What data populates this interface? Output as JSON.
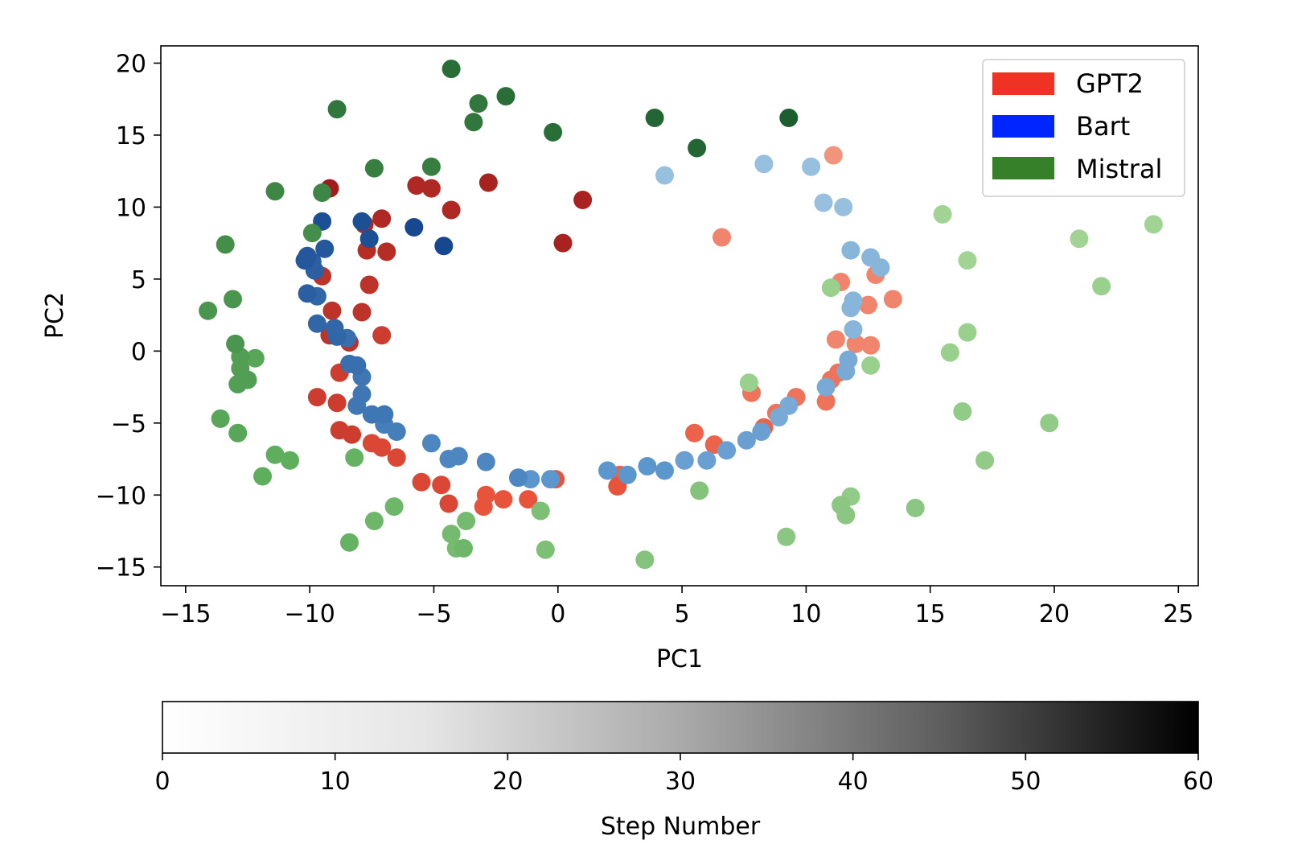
{
  "chart_data": {
    "type": "scatter",
    "title": "",
    "xlabel": "PC1",
    "ylabel": "PC2",
    "xlim": [
      -16,
      25.8
    ],
    "ylim": [
      -16.3,
      21.2
    ],
    "xticks": [
      -15,
      -10,
      -5,
      0,
      5,
      10,
      15,
      20,
      25
    ],
    "xtick_labels": [
      "−15",
      "−10",
      "−5",
      "0",
      "5",
      "10",
      "15",
      "20",
      "25"
    ],
    "yticks": [
      -15,
      -10,
      -5,
      0,
      5,
      10,
      15,
      20
    ],
    "ytick_labels": [
      "−15",
      "−10",
      "−5",
      "0",
      "5",
      "10",
      "15",
      "20"
    ],
    "grid": false,
    "legend_position": "top-right",
    "legend": [
      {
        "name": "GPT2",
        "color": "#ee3324"
      },
      {
        "name": "Bart",
        "color": "#0026ff"
      },
      {
        "name": "Mistral",
        "color": "#37802a"
      }
    ],
    "colorbar": {
      "label": "Step Number",
      "range": [
        0,
        60
      ],
      "ticks": [
        0,
        10,
        20,
        30,
        40,
        50,
        60
      ],
      "tick_labels": [
        "0",
        "10",
        "20",
        "30",
        "40",
        "50",
        "60"
      ],
      "orientation": "horizontal",
      "colormap": "greys"
    },
    "series": [
      {
        "name": "GPT2",
        "points": [
          [
            11.1,
            13.6,
            0.1
          ],
          [
            6.6,
            7.9,
            0.2
          ],
          [
            12.8,
            5.3,
            0.2
          ],
          [
            13.5,
            3.6,
            0.2
          ],
          [
            11.4,
            4.8,
            0.2
          ],
          [
            12.5,
            3.2,
            0.2
          ],
          [
            11.2,
            0.8,
            0.2
          ],
          [
            12.0,
            0.5,
            0.2
          ],
          [
            12.6,
            0.4,
            0.2
          ],
          [
            11.3,
            -1.5,
            0.3
          ],
          [
            11.0,
            -2.0,
            0.3
          ],
          [
            9.6,
            -3.2,
            0.3
          ],
          [
            10.8,
            -3.5,
            0.3
          ],
          [
            7.8,
            -2.9,
            0.3
          ],
          [
            8.8,
            -4.3,
            0.3
          ],
          [
            8.3,
            -5.3,
            0.4
          ],
          [
            5.5,
            -5.7,
            0.4
          ],
          [
            6.3,
            -6.5,
            0.4
          ],
          [
            5.1,
            -7.6,
            0.4
          ],
          [
            2.5,
            -8.6,
            0.4
          ],
          [
            2.4,
            -9.4,
            0.5
          ],
          [
            -0.1,
            -8.9,
            0.5
          ],
          [
            -1.2,
            -10.3,
            0.5
          ],
          [
            -2.2,
            -10.3,
            0.5
          ],
          [
            -2.9,
            -10.0,
            0.5
          ],
          [
            -3.0,
            -10.8,
            0.5
          ],
          [
            -4.4,
            -10.6,
            0.6
          ],
          [
            -4.7,
            -9.3,
            0.6
          ],
          [
            -5.5,
            -9.1,
            0.6
          ],
          [
            -6.5,
            -7.4,
            0.6
          ],
          [
            -7.1,
            -6.7,
            0.6
          ],
          [
            -7.5,
            -6.4,
            0.6
          ],
          [
            -8.3,
            -5.8,
            0.7
          ],
          [
            -8.8,
            -5.5,
            0.7
          ],
          [
            -8.9,
            -3.6,
            0.7
          ],
          [
            -9.7,
            -3.2,
            0.7
          ],
          [
            -8.8,
            -1.5,
            0.7
          ],
          [
            -7.1,
            1.1,
            0.7
          ],
          [
            -8.4,
            0.6,
            0.8
          ],
          [
            -9.2,
            1.1,
            0.8
          ],
          [
            -7.9,
            2.7,
            0.8
          ],
          [
            -9.1,
            2.8,
            0.8
          ],
          [
            -9.5,
            5.2,
            0.8
          ],
          [
            -7.6,
            4.6,
            0.8
          ],
          [
            -7.7,
            7.0,
            0.85
          ],
          [
            -6.9,
            6.9,
            0.85
          ],
          [
            -7.8,
            8.8,
            0.9
          ],
          [
            -7.1,
            9.2,
            0.9
          ],
          [
            -4.3,
            9.8,
            0.9
          ],
          [
            -5.7,
            11.5,
            0.9
          ],
          [
            -5.1,
            11.3,
            0.9
          ],
          [
            -2.8,
            11.7,
            0.95
          ],
          [
            1.0,
            10.5,
            0.95
          ],
          [
            0.2,
            7.5,
            0.95
          ],
          [
            -9.2,
            11.3,
            1.0
          ]
        ]
      },
      {
        "name": "Bart",
        "points": [
          [
            4.3,
            12.2,
            0.1
          ],
          [
            8.3,
            13.0,
            0.1
          ],
          [
            10.2,
            12.8,
            0.1
          ],
          [
            10.7,
            10.3,
            0.1
          ],
          [
            11.5,
            10.0,
            0.1
          ],
          [
            11.8,
            7.0,
            0.2
          ],
          [
            12.6,
            6.5,
            0.2
          ],
          [
            13.0,
            5.8,
            0.2
          ],
          [
            11.9,
            3.5,
            0.2
          ],
          [
            11.8,
            3.0,
            0.2
          ],
          [
            11.9,
            1.5,
            0.2
          ],
          [
            11.7,
            -0.6,
            0.3
          ],
          [
            11.6,
            -1.4,
            0.3
          ],
          [
            10.8,
            -2.5,
            0.3
          ],
          [
            9.3,
            -3.8,
            0.3
          ],
          [
            8.9,
            -4.6,
            0.3
          ],
          [
            8.2,
            -5.6,
            0.4
          ],
          [
            7.6,
            -6.2,
            0.4
          ],
          [
            6.8,
            -6.9,
            0.4
          ],
          [
            6.0,
            -7.6,
            0.4
          ],
          [
            5.1,
            -7.6,
            0.4
          ],
          [
            4.3,
            -8.3,
            0.5
          ],
          [
            3.6,
            -8.0,
            0.5
          ],
          [
            2.8,
            -8.6,
            0.5
          ],
          [
            2.0,
            -8.3,
            0.5
          ],
          [
            -0.3,
            -8.9,
            0.5
          ],
          [
            -1.1,
            -8.9,
            0.5
          ],
          [
            -1.6,
            -8.8,
            0.6
          ],
          [
            -2.9,
            -7.7,
            0.6
          ],
          [
            -4.0,
            -7.3,
            0.6
          ],
          [
            -4.4,
            -7.5,
            0.6
          ],
          [
            -5.1,
            -6.4,
            0.6
          ],
          [
            -6.5,
            -5.6,
            0.65
          ],
          [
            -7.0,
            -5.1,
            0.65
          ],
          [
            -7.0,
            -4.4,
            0.7
          ],
          [
            -7.5,
            -4.4,
            0.7
          ],
          [
            -8.1,
            -3.8,
            0.7
          ],
          [
            -7.9,
            -3.0,
            0.7
          ],
          [
            -7.9,
            -1.8,
            0.7
          ],
          [
            -8.1,
            -1.0,
            0.75
          ],
          [
            -8.4,
            -0.9,
            0.75
          ],
          [
            -8.5,
            0.9,
            0.75
          ],
          [
            -8.9,
            1.0,
            0.8
          ],
          [
            -9.0,
            1.6,
            0.8
          ],
          [
            -9.7,
            1.9,
            0.8
          ],
          [
            -9.7,
            3.8,
            0.8
          ],
          [
            -10.1,
            4.0,
            0.85
          ],
          [
            -9.8,
            5.6,
            0.85
          ],
          [
            -9.9,
            6.2,
            0.85
          ],
          [
            -10.2,
            6.3,
            0.9
          ],
          [
            -10.1,
            6.6,
            0.9
          ],
          [
            -9.4,
            7.1,
            0.9
          ],
          [
            -9.5,
            9.0,
            0.95
          ],
          [
            -7.9,
            9.0,
            0.95
          ],
          [
            -7.6,
            7.8,
            0.95
          ],
          [
            -5.8,
            8.6,
            1.0
          ],
          [
            -4.6,
            7.3,
            1.0
          ]
        ]
      },
      {
        "name": "Mistral",
        "points": [
          [
            24.0,
            8.8,
            0.05
          ],
          [
            21.0,
            7.8,
            0.05
          ],
          [
            15.5,
            9.5,
            0.05
          ],
          [
            16.5,
            6.3,
            0.05
          ],
          [
            21.9,
            4.5,
            0.1
          ],
          [
            11.0,
            4.4,
            0.1
          ],
          [
            16.5,
            1.3,
            0.1
          ],
          [
            15.8,
            -0.1,
            0.1
          ],
          [
            12.6,
            -1.0,
            0.1
          ],
          [
            7.7,
            -2.2,
            0.1
          ],
          [
            16.3,
            -4.2,
            0.15
          ],
          [
            19.8,
            -5.0,
            0.15
          ],
          [
            17.2,
            -7.6,
            0.15
          ],
          [
            11.8,
            -10.1,
            0.15
          ],
          [
            11.4,
            -10.7,
            0.2
          ],
          [
            11.6,
            -11.4,
            0.2
          ],
          [
            14.4,
            -10.9,
            0.2
          ],
          [
            9.2,
            -12.9,
            0.2
          ],
          [
            5.7,
            -9.7,
            0.25
          ],
          [
            3.5,
            -14.5,
            0.25
          ],
          [
            -0.7,
            -11.1,
            0.3
          ],
          [
            -0.5,
            -13.8,
            0.3
          ],
          [
            -3.7,
            -11.8,
            0.35
          ],
          [
            -4.3,
            -12.7,
            0.35
          ],
          [
            -4.1,
            -13.7,
            0.35
          ],
          [
            -3.8,
            -13.7,
            0.4
          ],
          [
            -6.6,
            -10.8,
            0.4
          ],
          [
            -7.4,
            -11.8,
            0.4
          ],
          [
            -8.4,
            -13.3,
            0.45
          ],
          [
            -8.2,
            -7.4,
            0.45
          ],
          [
            -10.8,
            -7.6,
            0.5
          ],
          [
            -11.4,
            -7.2,
            0.5
          ],
          [
            -11.9,
            -8.7,
            0.5
          ],
          [
            -12.9,
            -5.7,
            0.55
          ],
          [
            -13.6,
            -4.7,
            0.55
          ],
          [
            -12.2,
            -0.5,
            0.55
          ],
          [
            -12.5,
            -2.0,
            0.6
          ],
          [
            -12.9,
            -2.3,
            0.6
          ],
          [
            -12.8,
            -0.4,
            0.6
          ],
          [
            -12.8,
            -1.2,
            0.6
          ],
          [
            -13.0,
            0.5,
            0.65
          ],
          [
            -14.1,
            2.8,
            0.65
          ],
          [
            -13.1,
            3.6,
            0.65
          ],
          [
            -13.4,
            7.4,
            0.7
          ],
          [
            -9.9,
            8.2,
            0.7
          ],
          [
            -11.4,
            11.1,
            0.75
          ],
          [
            -9.5,
            11.0,
            0.75
          ],
          [
            -7.4,
            12.7,
            0.8
          ],
          [
            -5.1,
            12.8,
            0.8
          ],
          [
            -8.9,
            16.8,
            0.85
          ],
          [
            -3.4,
            15.9,
            0.85
          ],
          [
            -3.2,
            17.2,
            0.85
          ],
          [
            -2.1,
            17.7,
            0.9
          ],
          [
            -0.2,
            15.2,
            0.9
          ],
          [
            -4.3,
            19.6,
            0.9
          ],
          [
            3.9,
            16.2,
            0.95
          ],
          [
            5.6,
            14.1,
            0.95
          ],
          [
            9.3,
            16.2,
            1.0
          ]
        ]
      }
    ]
  }
}
